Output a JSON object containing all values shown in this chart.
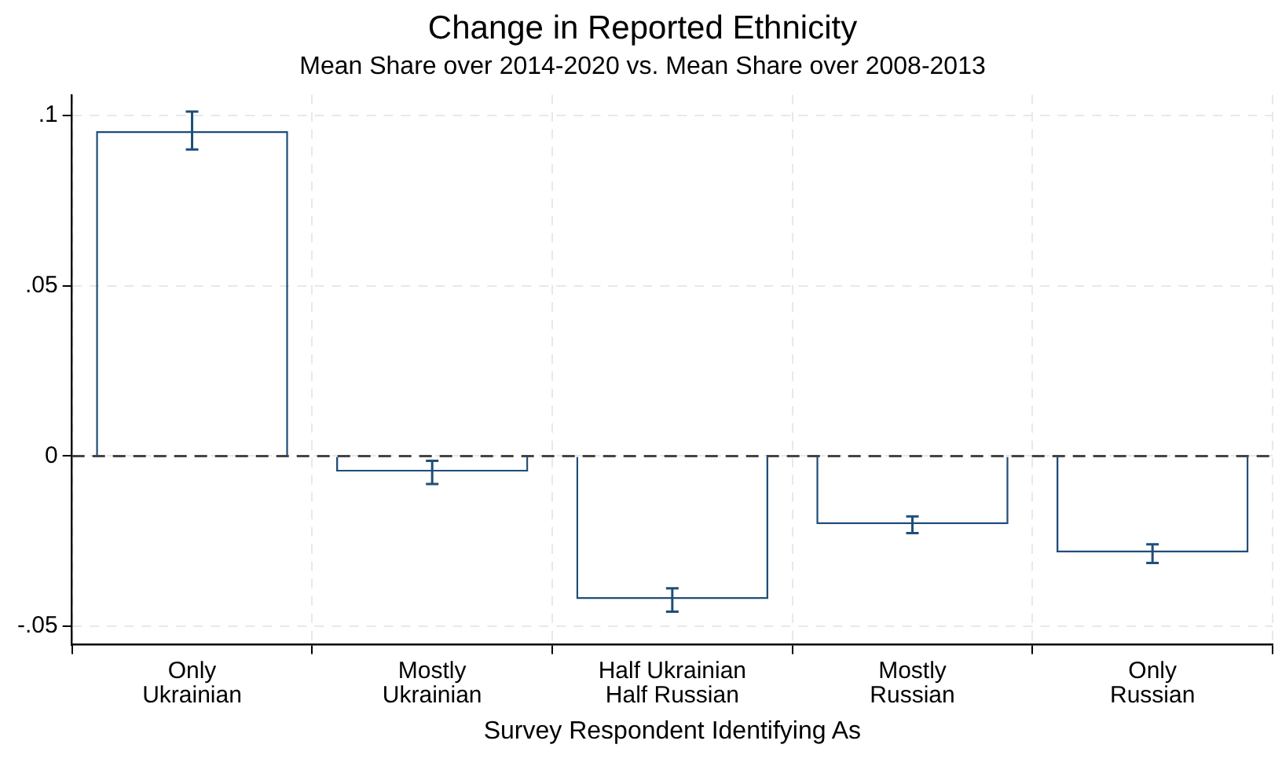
{
  "chart_data": {
    "type": "bar",
    "title": "Change in Reported Ethnicity",
    "subtitle": "Mean Share over 2014-2020 vs. Mean Share over 2008-2013",
    "xlabel": "Survey Respondent Identifying As",
    "categories": [
      "Only\nUkrainian",
      "Mostly\nUkrainian",
      "Half Ukrainian\nHalf Russian",
      "Mostly\nRussian",
      "Only\nRussian"
    ],
    "values": [
      0.0954,
      -0.0046,
      -0.042,
      -0.02,
      -0.0283
    ],
    "errors": [
      [
        0.09,
        0.1011
      ],
      [
        -0.0082,
        -0.0014
      ],
      [
        -0.0457,
        -0.0388
      ],
      [
        -0.0226,
        -0.0177
      ],
      [
        -0.0314,
        -0.0259
      ]
    ],
    "color": "#1f4e79",
    "ylim": [
      -0.0554,
      0.106
    ],
    "yticks": [
      {
        "value": -0.05,
        "label": "-.05"
      },
      0,
      {
        "value": 0.05,
        "label": ".05"
      },
      {
        "value": 0.1,
        "label": ".1"
      }
    ],
    "ref_lines": [
      {
        "axis": "y",
        "value": 0,
        "color": "#444444",
        "line_style": "dashed"
      }
    ],
    "grid": true,
    "legend": false
  }
}
